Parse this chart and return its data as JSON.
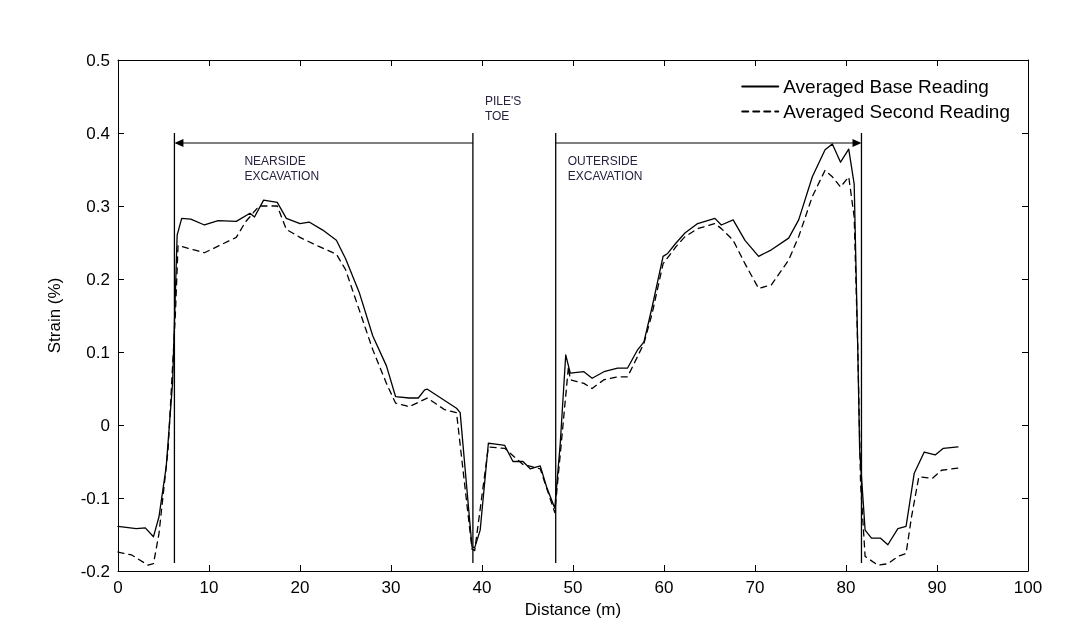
{
  "chart_data": {
    "type": "line",
    "xlabel": "Distance (m)",
    "ylabel": "Strain (%)",
    "xlim": [
      0,
      100
    ],
    "xticks": [
      0,
      10,
      20,
      30,
      40,
      50,
      60,
      70,
      80,
      90,
      100
    ],
    "ylim": [
      -0.2,
      0.5
    ],
    "yticks": [
      -0.2,
      -0.1,
      0,
      0.1,
      0.2,
      0.3,
      0.4,
      0.5
    ],
    "grid": false,
    "legend": "top right",
    "marker": "none",
    "series": [
      {
        "name": "Averaged Base Reading",
        "color": "#000000",
        "line_style": "solid",
        "x": [
          0,
          2,
          3,
          3.9,
          4.5,
          5.3,
          6,
          6.5,
          7,
          8,
          9.5,
          11,
          13,
          14.5,
          15,
          16,
          17.5,
          18.5,
          20,
          21,
          22.5,
          24,
          25,
          26.5,
          28,
          29.5,
          30.5,
          32,
          33,
          33.7,
          34,
          37.2,
          37.6,
          38.9,
          39.2,
          39.8,
          40.7,
          41.3,
          42.5,
          43.4,
          44.5,
          45.3,
          46.4,
          47.1,
          48,
          48.6,
          49.2,
          49.7,
          51.2,
          52.1,
          53.4,
          54.9,
          56,
          57.1,
          57.8,
          58.7,
          59.9,
          60.4,
          61.3,
          62.3,
          63.7,
          65.6,
          66.3,
          67.6,
          68.9,
          70.4,
          71.8,
          73.7,
          74.8,
          76.3,
          77.7,
          78.5,
          79.4,
          80.3,
          80.9,
          81.3,
          81.5,
          82.1,
          82.8,
          83.8,
          84.6,
          85.7,
          86.6,
          87.5,
          88.6,
          89.8,
          90.7,
          92.3
        ],
        "values": [
          -0.139,
          -0.142,
          -0.141,
          -0.153,
          -0.126,
          -0.057,
          0.058,
          0.26,
          0.283,
          0.282,
          0.274,
          0.28,
          0.279,
          0.29,
          0.285,
          0.308,
          0.305,
          0.283,
          0.276,
          0.278,
          0.267,
          0.253,
          0.228,
          0.182,
          0.122,
          0.081,
          0.039,
          0.037,
          0.037,
          0.048,
          0.049,
          0.023,
          0.017,
          -0.167,
          -0.168,
          -0.144,
          -0.025,
          -0.026,
          -0.028,
          -0.05,
          -0.05,
          -0.06,
          -0.056,
          -0.085,
          -0.114,
          -0.025,
          0.096,
          0.071,
          0.073,
          0.064,
          0.073,
          0.078,
          0.078,
          0.103,
          0.114,
          0.162,
          0.231,
          0.235,
          0.249,
          0.263,
          0.276,
          0.283,
          0.274,
          0.281,
          0.253,
          0.231,
          0.24,
          0.256,
          0.281,
          0.34,
          0.377,
          0.385,
          0.36,
          0.378,
          0.33,
          0.1,
          -0.034,
          -0.144,
          -0.155,
          -0.155,
          -0.164,
          -0.142,
          -0.139,
          -0.066,
          -0.037,
          -0.041,
          -0.032,
          -0.03
        ]
      },
      {
        "name": "Averaged Second Reading",
        "color": "#000000",
        "line_style": "dashed",
        "x": [
          0,
          1.5,
          3.3,
          3.9,
          4.5,
          5.5,
          6.3,
          6.6,
          8,
          9.5,
          11,
          13,
          14,
          15.5,
          17.5,
          18.5,
          20,
          22,
          24,
          25,
          26.5,
          28,
          29.5,
          30.5,
          32,
          34,
          35.9,
          37.2,
          38.9,
          39.2,
          40.7,
          42.5,
          44.5,
          46.4,
          48,
          48.6,
          49.5,
          49.7,
          51.2,
          52.1,
          53.4,
          54.9,
          56,
          57.1,
          57.8,
          58.7,
          59.9,
          61.3,
          62.3,
          63.7,
          65.6,
          66.3,
          67.6,
          68.9,
          70.4,
          71.8,
          73.7,
          74.8,
          76.3,
          77.7,
          78.5,
          79.4,
          80.3,
          80.9,
          81.3,
          81.6,
          82.1,
          83.5,
          84.6,
          85.7,
          86.6,
          87.2,
          88,
          89.5,
          90.5,
          92.3
        ],
        "values": [
          -0.174,
          -0.178,
          -0.192,
          -0.19,
          -0.149,
          -0.034,
          0.15,
          0.246,
          0.241,
          0.236,
          0.245,
          0.257,
          0.278,
          0.3,
          0.3,
          0.268,
          0.257,
          0.245,
          0.234,
          0.213,
          0.158,
          0.103,
          0.057,
          0.03,
          0.025,
          0.037,
          0.021,
          0.017,
          -0.17,
          -0.172,
          -0.03,
          -0.032,
          -0.054,
          -0.06,
          -0.12,
          -0.04,
          0.08,
          0.062,
          0.057,
          0.05,
          0.062,
          0.066,
          0.066,
          0.094,
          0.112,
          0.153,
          0.221,
          0.244,
          0.258,
          0.269,
          0.276,
          0.269,
          0.253,
          0.221,
          0.187,
          0.192,
          0.226,
          0.258,
          0.313,
          0.349,
          0.34,
          0.326,
          0.34,
          0.285,
          0.103,
          -0.08,
          -0.18,
          -0.192,
          -0.19,
          -0.18,
          -0.176,
          -0.126,
          -0.071,
          -0.073,
          -0.062,
          -0.059
        ]
      }
    ],
    "ref_lines": [
      {
        "axis": "x",
        "value": 6.2
      },
      {
        "axis": "x",
        "value": 39
      },
      {
        "axis": "x",
        "value": 48.1
      },
      {
        "axis": "x",
        "value": 81.7
      }
    ],
    "annotations": [
      "NEARSIDE\nEXCAVATION",
      "PILE'S\nTOE",
      "OUTERSIDE\nEXCAVATION"
    ]
  }
}
